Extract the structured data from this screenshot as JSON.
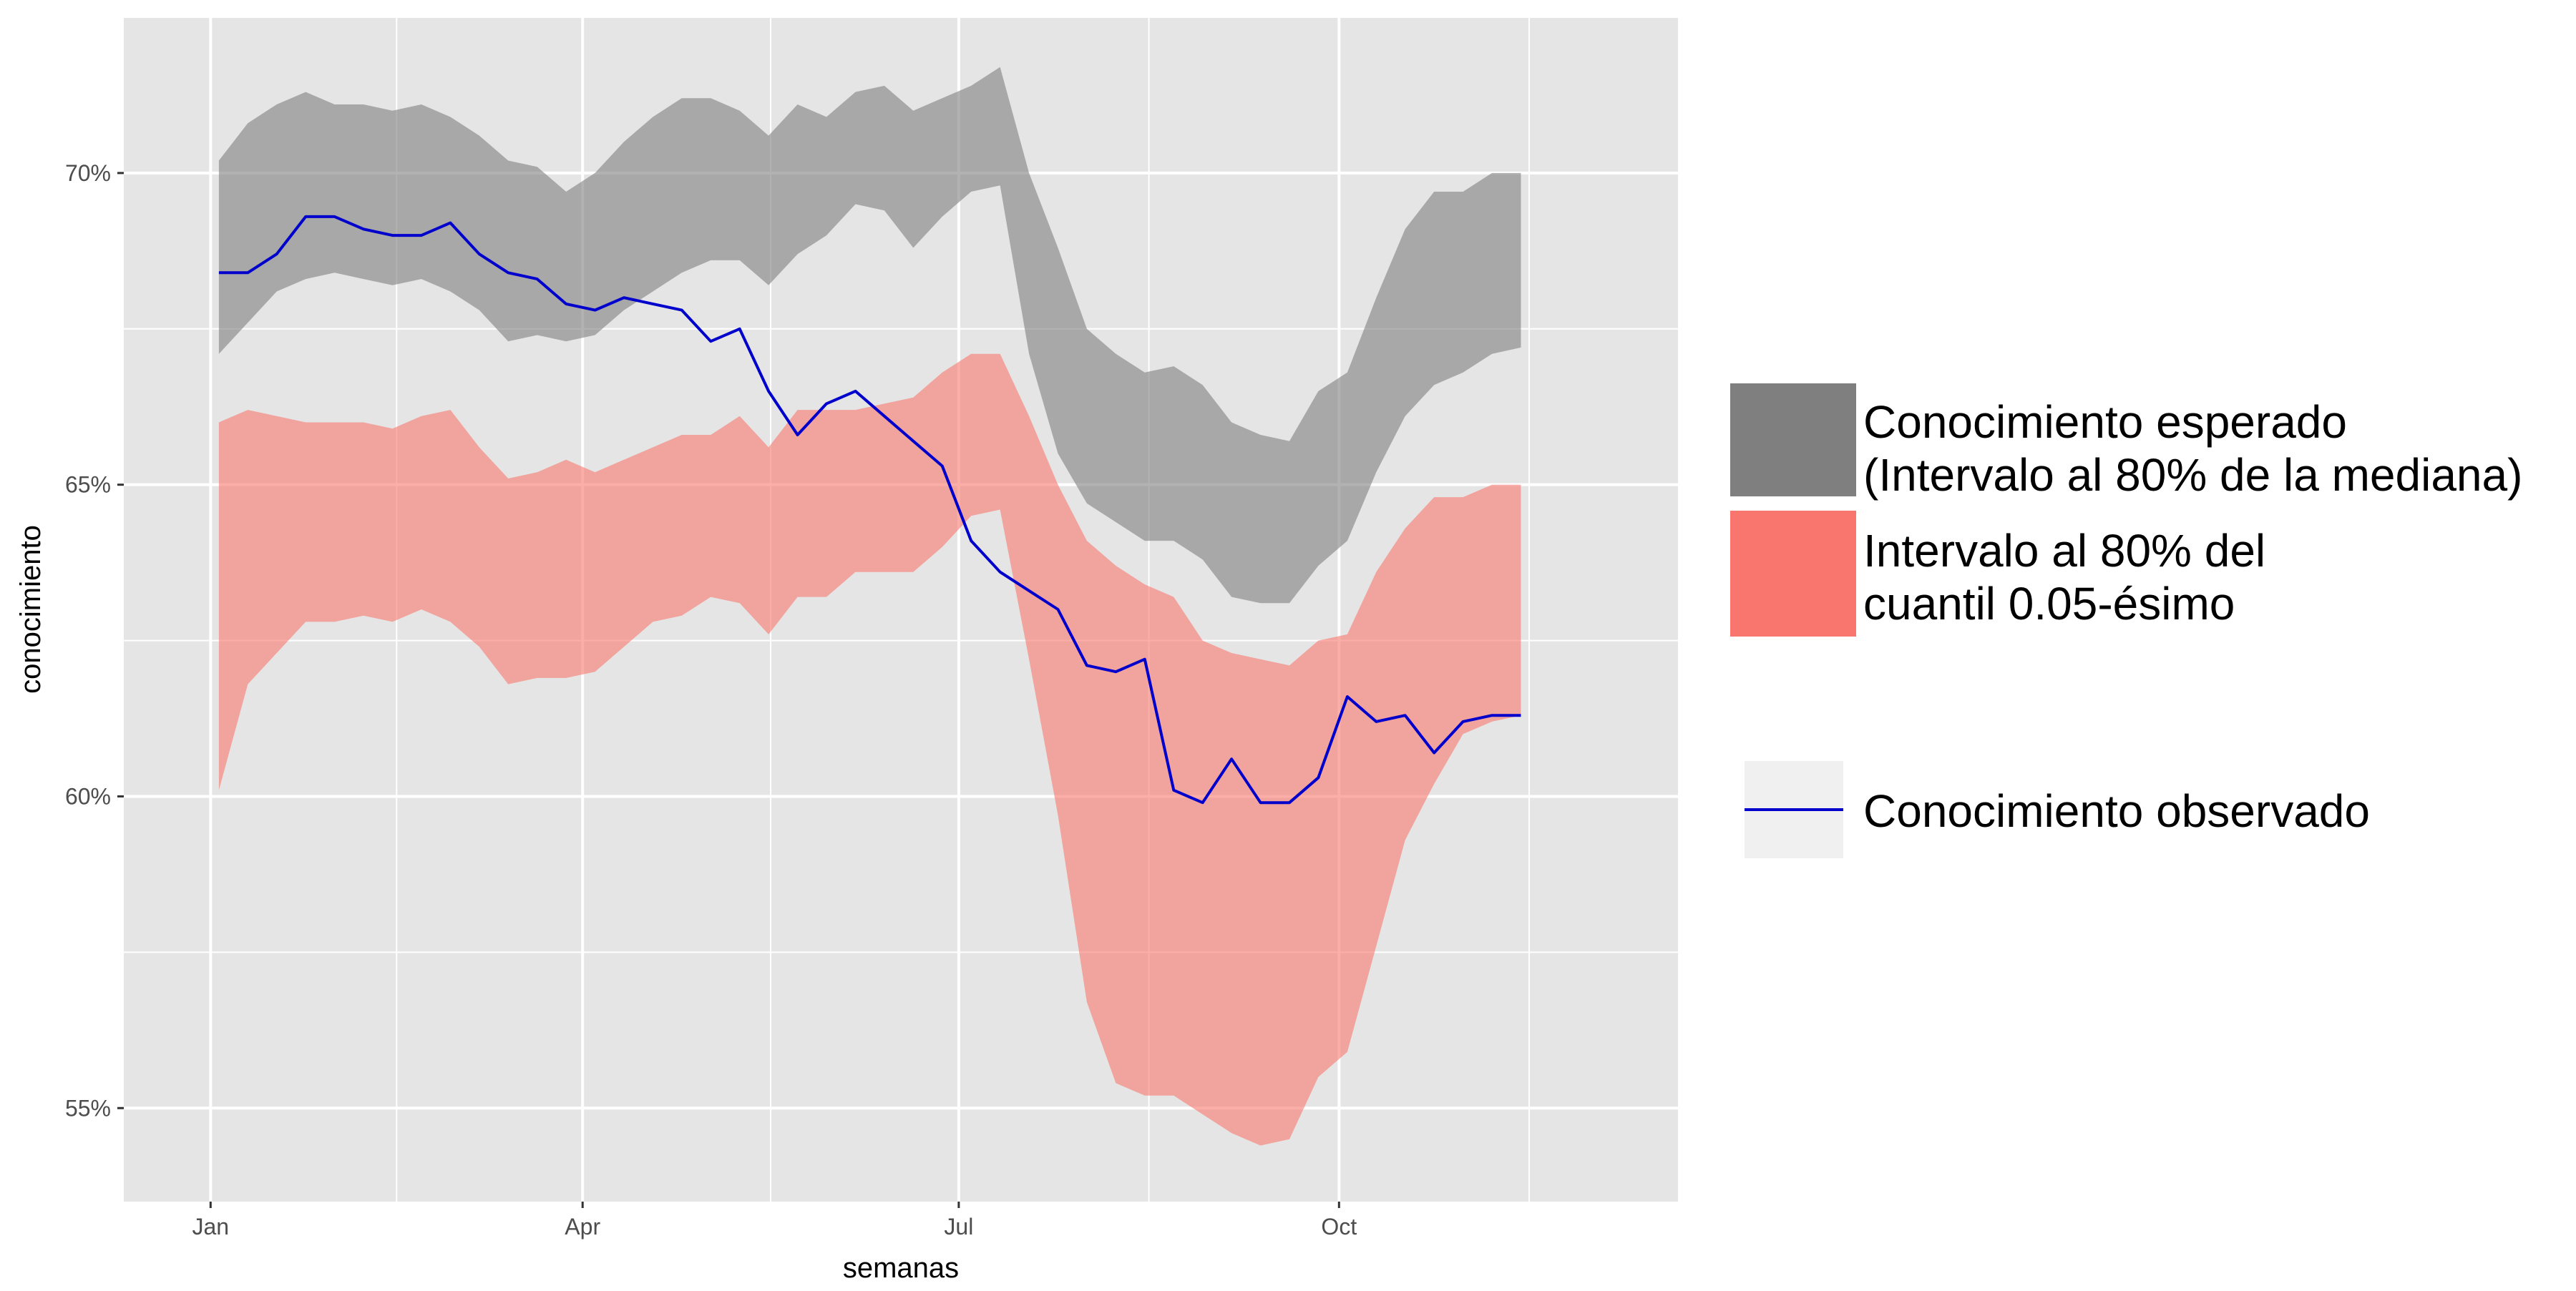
{
  "chart_data": {
    "type": "area",
    "xlabel": "semanas",
    "ylabel": "conocimiento",
    "x_ticks": [
      "Jan",
      "Apr",
      "Jul",
      "Oct"
    ],
    "x_tick_dates": [
      "2019-01-01",
      "2019-04-01",
      "2019-07-01",
      "2019-10-01"
    ],
    "y_ticks": [
      55,
      60,
      65,
      70
    ],
    "y_tick_labels": [
      "55%",
      "60%",
      "65%",
      "70%"
    ],
    "ylim": [
      53.5,
      72.5
    ],
    "xlim": [
      "2018-12-11",
      "2019-12-22"
    ],
    "grid": true,
    "legend_position": "right",
    "colors": {
      "panel": "#e5e5e5",
      "grid": "#ffffff",
      "expected_band": "#7f7f7f",
      "quantile_band": "#f8766d",
      "observed_line": "#0000cc",
      "legend_key_bg": "#f0f0f0"
    },
    "dates": [
      "2019-01-03",
      "2019-01-10",
      "2019-01-17",
      "2019-01-24",
      "2019-01-31",
      "2019-02-07",
      "2019-02-14",
      "2019-02-21",
      "2019-02-28",
      "2019-03-07",
      "2019-03-14",
      "2019-03-21",
      "2019-03-28",
      "2019-04-04",
      "2019-04-11",
      "2019-04-18",
      "2019-04-25",
      "2019-05-02",
      "2019-05-09",
      "2019-05-16",
      "2019-05-23",
      "2019-05-30",
      "2019-06-06",
      "2019-06-13",
      "2019-06-20",
      "2019-06-27",
      "2019-07-04",
      "2019-07-11",
      "2019-07-18",
      "2019-07-25",
      "2019-08-01",
      "2019-08-08",
      "2019-08-15",
      "2019-08-22",
      "2019-08-29",
      "2019-09-05",
      "2019-09-12",
      "2019-09-19",
      "2019-09-26",
      "2019-10-03",
      "2019-10-10",
      "2019-10-17",
      "2019-10-24",
      "2019-10-31",
      "2019-11-07",
      "2019-11-14"
    ],
    "series": [
      {
        "name": "Conocimiento esperado (Intervalo al 80% de la mediana)",
        "kind": "band",
        "upper": [
          70.2,
          70.8,
          71.1,
          71.3,
          71.1,
          71.1,
          71.0,
          71.1,
          70.9,
          70.6,
          70.2,
          70.1,
          69.7,
          70.0,
          70.5,
          70.9,
          71.2,
          71.2,
          71.0,
          70.6,
          71.1,
          70.9,
          71.3,
          71.4,
          71.0,
          71.2,
          71.4,
          71.7,
          70.0,
          68.8,
          67.5,
          67.1,
          66.8,
          66.9,
          66.6,
          66.0,
          65.8,
          65.7,
          66.5,
          66.8,
          68.0,
          69.1,
          69.7,
          69.7,
          70.0,
          70.0
        ],
        "lower": [
          67.1,
          67.6,
          68.1,
          68.3,
          68.4,
          68.3,
          68.2,
          68.3,
          68.1,
          67.8,
          67.3,
          67.4,
          67.3,
          67.4,
          67.8,
          68.1,
          68.4,
          68.6,
          68.6,
          68.2,
          68.7,
          69.0,
          69.5,
          69.4,
          68.8,
          69.3,
          69.7,
          69.8,
          67.1,
          65.5,
          64.7,
          64.4,
          64.1,
          64.1,
          63.8,
          63.2,
          63.1,
          63.1,
          63.7,
          64.1,
          65.2,
          66.1,
          66.6,
          66.8,
          67.1,
          67.2
        ]
      },
      {
        "name": "Intervalo al 80% del cuantil 0.05-ésimo",
        "kind": "band",
        "upper": [
          66.0,
          66.2,
          66.1,
          66.0,
          66.0,
          66.0,
          65.9,
          66.1,
          66.2,
          65.6,
          65.1,
          65.2,
          65.4,
          65.2,
          65.4,
          65.6,
          65.8,
          65.8,
          66.1,
          65.6,
          66.2,
          66.2,
          66.2,
          66.3,
          66.4,
          66.8,
          67.1,
          67.1,
          66.1,
          65.0,
          64.1,
          63.7,
          63.4,
          63.2,
          62.5,
          62.3,
          62.2,
          62.1,
          62.5,
          62.6,
          63.6,
          64.3,
          64.8,
          64.8,
          65.0,
          65.0
        ],
        "lower": [
          60.1,
          61.8,
          62.3,
          62.8,
          62.8,
          62.9,
          62.8,
          63.0,
          62.8,
          62.4,
          61.8,
          61.9,
          61.9,
          62.0,
          62.4,
          62.8,
          62.9,
          63.2,
          63.1,
          62.6,
          63.2,
          63.2,
          63.6,
          63.6,
          63.6,
          64.0,
          64.5,
          64.6,
          62.2,
          59.7,
          56.7,
          55.4,
          55.2,
          55.2,
          54.9,
          54.6,
          54.4,
          54.5,
          55.5,
          55.9,
          57.6,
          59.3,
          60.2,
          61.0,
          61.2,
          61.3
        ]
      },
      {
        "name": "Conocimiento observado",
        "kind": "line",
        "values": [
          68.4,
          68.4,
          68.7,
          69.3,
          69.3,
          69.1,
          69.0,
          69.0,
          69.2,
          68.7,
          68.4,
          68.3,
          67.9,
          67.8,
          68.0,
          67.9,
          67.8,
          67.3,
          67.5,
          66.5,
          65.8,
          66.3,
          66.5,
          66.1,
          65.7,
          65.3,
          64.1,
          63.6,
          63.3,
          63.0,
          62.1,
          62.0,
          62.2,
          60.1,
          59.9,
          60.6,
          59.9,
          59.9,
          60.3,
          61.6,
          61.2,
          61.3,
          60.7,
          61.2,
          61.3,
          61.3
        ]
      }
    ]
  },
  "legend": {
    "items": [
      {
        "lines": [
          "Conocimiento esperado",
          "(Intervalo al 80% de la mediana)"
        ]
      },
      {
        "lines": [
          "Intervalo al 80% del",
          "cuantil 0.05-ésimo"
        ]
      },
      {
        "lines": [
          "Conocimiento observado"
        ]
      }
    ]
  }
}
